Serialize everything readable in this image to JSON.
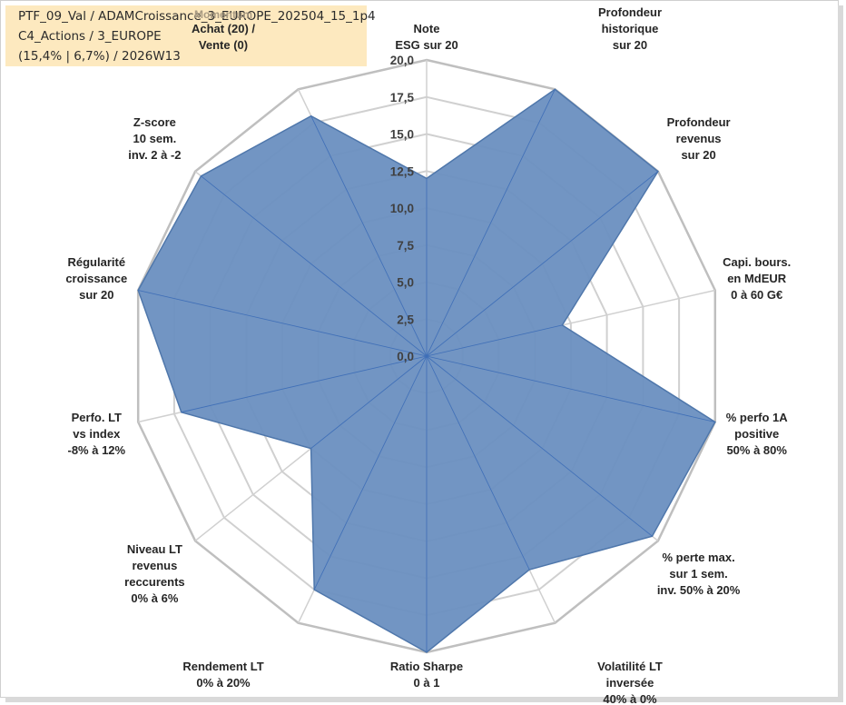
{
  "header": {
    "line1": "PTF_09_Val / ADAMCroissance_3_EUROPE_202504_15_1p4",
    "line2": "C4_Actions / 3_EUROPE",
    "line3": "(15,4% | 6,7%) / 2026W13"
  },
  "momentum_label": "Momentum",
  "colors": {
    "fill": "#6a8fc0",
    "stroke": "#4f77ab",
    "grid": "#d0d0d0",
    "outer": "#bfbfbf"
  },
  "chart_data": {
    "type": "radar",
    "rmin": 0,
    "rmax": 20,
    "tick_values": [
      0,
      2.5,
      5,
      7.5,
      10,
      12.5,
      15,
      17.5,
      20
    ],
    "tick_labels": [
      "0,0",
      "2,5",
      "5,0",
      "7,5",
      "10,0",
      "12,5",
      "15,0",
      "17,5",
      "20,0"
    ],
    "axes": [
      {
        "label": [
          "Note",
          "ESG sur 20"
        ],
        "value": 12
      },
      {
        "label": [
          "Profondeur",
          "historique",
          "sur 20"
        ],
        "value": 20
      },
      {
        "label": [
          "Profondeur",
          "revenus",
          "sur 20"
        ],
        "value": 20
      },
      {
        "label": [
          "Capi. bours.",
          "en MdEUR",
          "0 à 60 G€"
        ],
        "value": 9.4
      },
      {
        "label": [
          "% perfo 1A",
          "positive",
          "50% à 80%"
        ],
        "value": 20
      },
      {
        "label": [
          "% perte max.",
          "sur 1 sem.",
          "inv. 50% à 20%"
        ],
        "value": 19.5
      },
      {
        "label": [
          "Volatilité LT",
          "inversée",
          "40% à 0%"
        ],
        "value": 16
      },
      {
        "label": [
          "Ratio Sharpe",
          "0 à 1"
        ],
        "value": 20
      },
      {
        "label": [
          "Rendement LT",
          "0% à 20%"
        ],
        "value": 17.5
      },
      {
        "label": [
          "Niveau LT",
          "revenus",
          "reccurents",
          "0% à 6%"
        ],
        "value": 10
      },
      {
        "label": [
          "Perfo. LT",
          "vs index",
          "-8% à 12%"
        ],
        "value": 17
      },
      {
        "label": [
          "Régularité",
          "croissance",
          "sur 20"
        ],
        "value": 20
      },
      {
        "label": [
          "Z-score",
          "10 sem.",
          "inv. 2 à -2"
        ],
        "value": 19.5
      },
      {
        "label": [
          "Achat (20) /",
          "Vente (0)"
        ],
        "value": 18
      }
    ]
  }
}
